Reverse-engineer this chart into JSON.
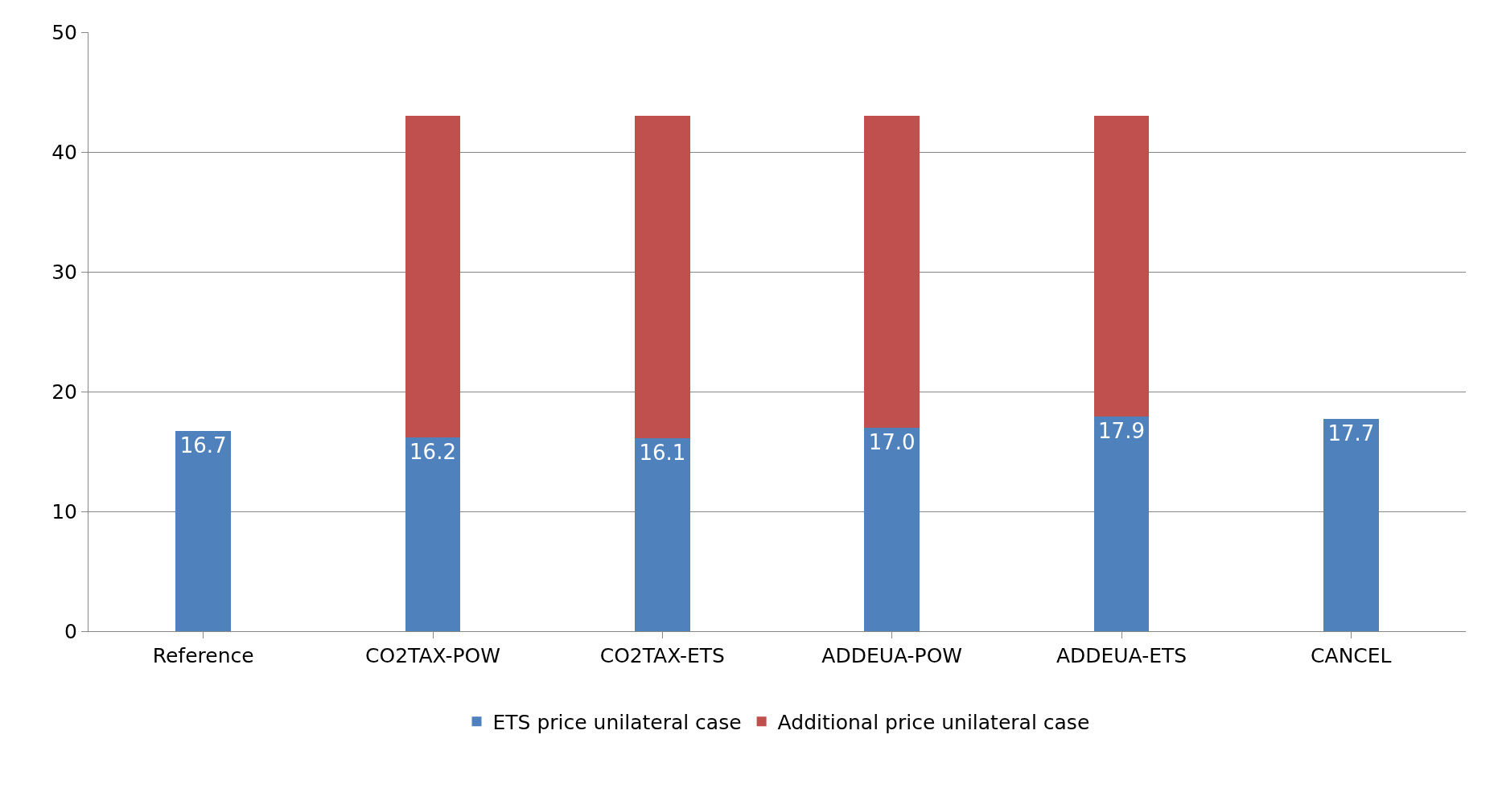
{
  "chart_data": {
    "type": "bar",
    "stacked": true,
    "categories": [
      "Reference",
      "CO2TAX-POW",
      "CO2TAX-ETS",
      "ADDEUA-POW",
      "ADDEUA-ETS",
      "CANCEL"
    ],
    "series": [
      {
        "name": "ETS price unilateral case",
        "color": "#4f81bd",
        "values": [
          16.7,
          16.2,
          16.1,
          17.0,
          17.9,
          17.7
        ],
        "value_labels": [
          "16.7",
          "16.2",
          "16.1",
          "17.0",
          "17.9",
          "17.7"
        ]
      },
      {
        "name": "Additional price unilateral case",
        "color": "#c0504d",
        "values": [
          null,
          26.8,
          26.9,
          26.0,
          25.1,
          null
        ]
      }
    ],
    "ylim": [
      0,
      50
    ],
    "yticks": [
      0,
      10,
      20,
      30,
      40,
      50
    ],
    "grid": "y",
    "legend": "bottom"
  }
}
